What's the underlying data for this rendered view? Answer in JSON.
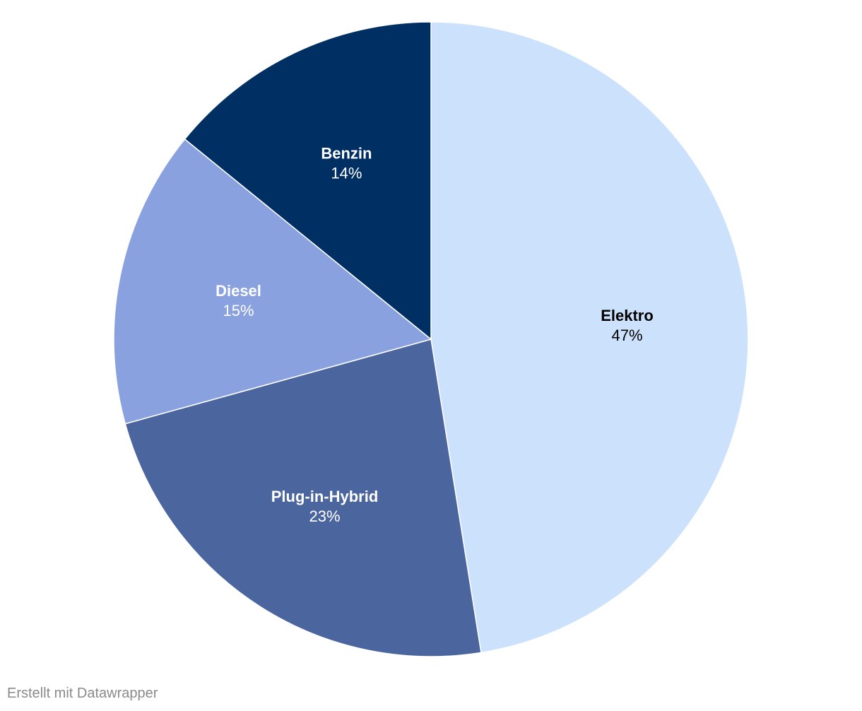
{
  "chart_data": {
    "type": "pie",
    "title": "",
    "slices": [
      {
        "label": "Elektro",
        "value": 47,
        "value_label": "47%",
        "color": "#cce2fc",
        "text_color": "#000000"
      },
      {
        "label": "Plug-in-Hybrid",
        "value": 23,
        "value_label": "23%",
        "color": "#4b659f",
        "text_color": "#ffffff"
      },
      {
        "label": "Diesel",
        "value": 15,
        "value_label": "15%",
        "color": "#8aa1df",
        "text_color": "#ffffff"
      },
      {
        "label": "Benzin",
        "value": 14,
        "value_label": "14%",
        "color": "#002f63",
        "text_color": "#ffffff"
      }
    ],
    "start": "12 o'clock",
    "direction": "clockwise"
  },
  "footer": {
    "credit": "Erstellt mit Datawrapper"
  }
}
